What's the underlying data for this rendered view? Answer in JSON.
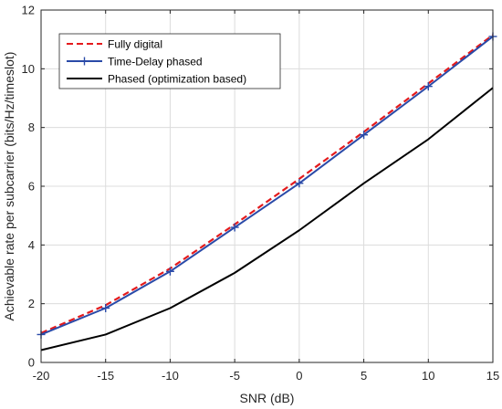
{
  "chart_data": {
    "type": "line",
    "xlabel": "SNR (dB)",
    "ylabel": "Achievable rate per subcarrier (bits/Hz/timeslot)",
    "xlim": [
      -20,
      15
    ],
    "ylim": [
      0,
      12
    ],
    "x": [
      -20,
      -15,
      -10,
      -5,
      0,
      5,
      10,
      15
    ],
    "xticks": [
      "-20",
      "-15",
      "-10",
      "-5",
      "0",
      "5",
      "10",
      "15"
    ],
    "yticks": [
      "0",
      "2",
      "4",
      "6",
      "8",
      "10",
      "12"
    ],
    "grid": true,
    "legend_position": "top-left",
    "series": [
      {
        "name": "Fully digital",
        "values": [
          1.0,
          1.95,
          3.2,
          4.7,
          6.25,
          7.85,
          9.5,
          11.15
        ],
        "color": "#e41a1c",
        "line_style": "dashed",
        "marker": "none"
      },
      {
        "name": "Time-Delay phased",
        "values": [
          0.95,
          1.85,
          3.1,
          4.6,
          6.1,
          7.75,
          9.4,
          11.1
        ],
        "color": "#2a4aa8",
        "line_style": "solid",
        "marker": "plus"
      },
      {
        "name": "Phased (optimization based)",
        "values": [
          0.42,
          0.95,
          1.85,
          3.05,
          4.5,
          6.1,
          7.6,
          9.35
        ],
        "color": "#000000",
        "line_style": "solid",
        "marker": "none"
      }
    ]
  }
}
